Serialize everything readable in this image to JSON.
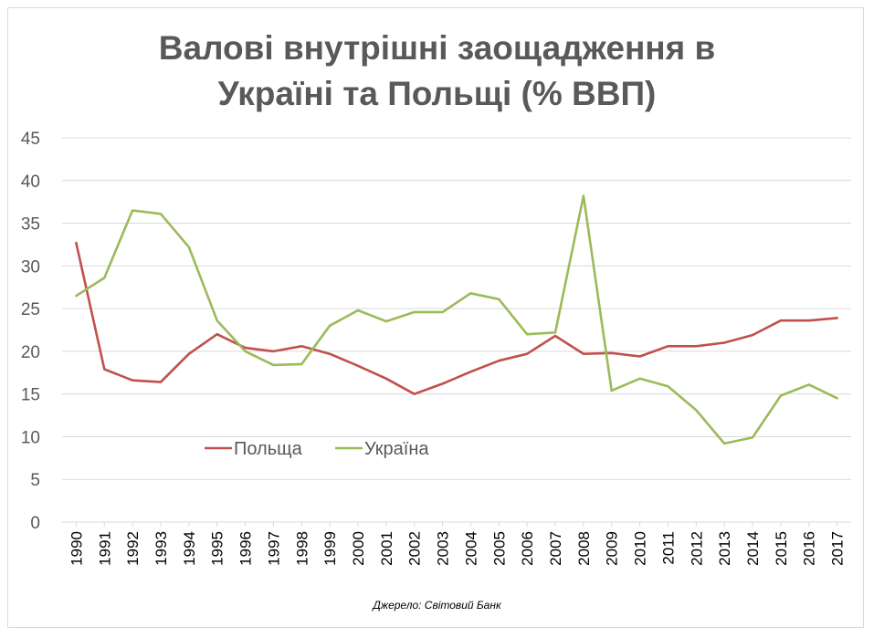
{
  "chart_data": {
    "type": "line",
    "title_line1": "Валові внутрішні заощадження в",
    "title_line2": "Україні та Польщі (% ВВП)",
    "source": "Джерело: Світовий Банк",
    "x": [
      "1990",
      "1991",
      "1992",
      "1993",
      "1994",
      "1995",
      "1996",
      "1997",
      "1998",
      "1999",
      "2000",
      "2001",
      "2002",
      "2003",
      "2004",
      "2005",
      "2006",
      "2007",
      "2008",
      "2009",
      "2010",
      "2011",
      "2012",
      "2013",
      "2014",
      "2015",
      "2016",
      "2017"
    ],
    "ylim": [
      0,
      45
    ],
    "yticks": [
      "0",
      "5",
      "10",
      "15",
      "20",
      "25",
      "30",
      "35",
      "40",
      "45"
    ],
    "grid": true,
    "legend_placement": "inside-lower-left",
    "series": [
      {
        "name": "Польща",
        "color": "#c0504d",
        "values": [
          32.7,
          17.9,
          16.6,
          16.4,
          19.7,
          22.0,
          20.4,
          20.0,
          20.6,
          19.7,
          18.3,
          16.8,
          15.0,
          16.2,
          17.6,
          18.9,
          19.7,
          21.8,
          19.7,
          19.8,
          19.4,
          20.6,
          20.6,
          21.0,
          21.9,
          23.6,
          23.6,
          23.9
        ]
      },
      {
        "name": "Україна",
        "color": "#9bbb59",
        "values": [
          26.5,
          28.6,
          36.5,
          36.1,
          32.2,
          23.6,
          20.0,
          18.4,
          18.5,
          23.0,
          24.8,
          23.5,
          24.6,
          24.6,
          26.8,
          26.1,
          22.0,
          22.2,
          38.2,
          15.4,
          16.8,
          15.9,
          13.1,
          9.2,
          9.9,
          14.8,
          16.1,
          14.5
        ]
      }
    ]
  }
}
